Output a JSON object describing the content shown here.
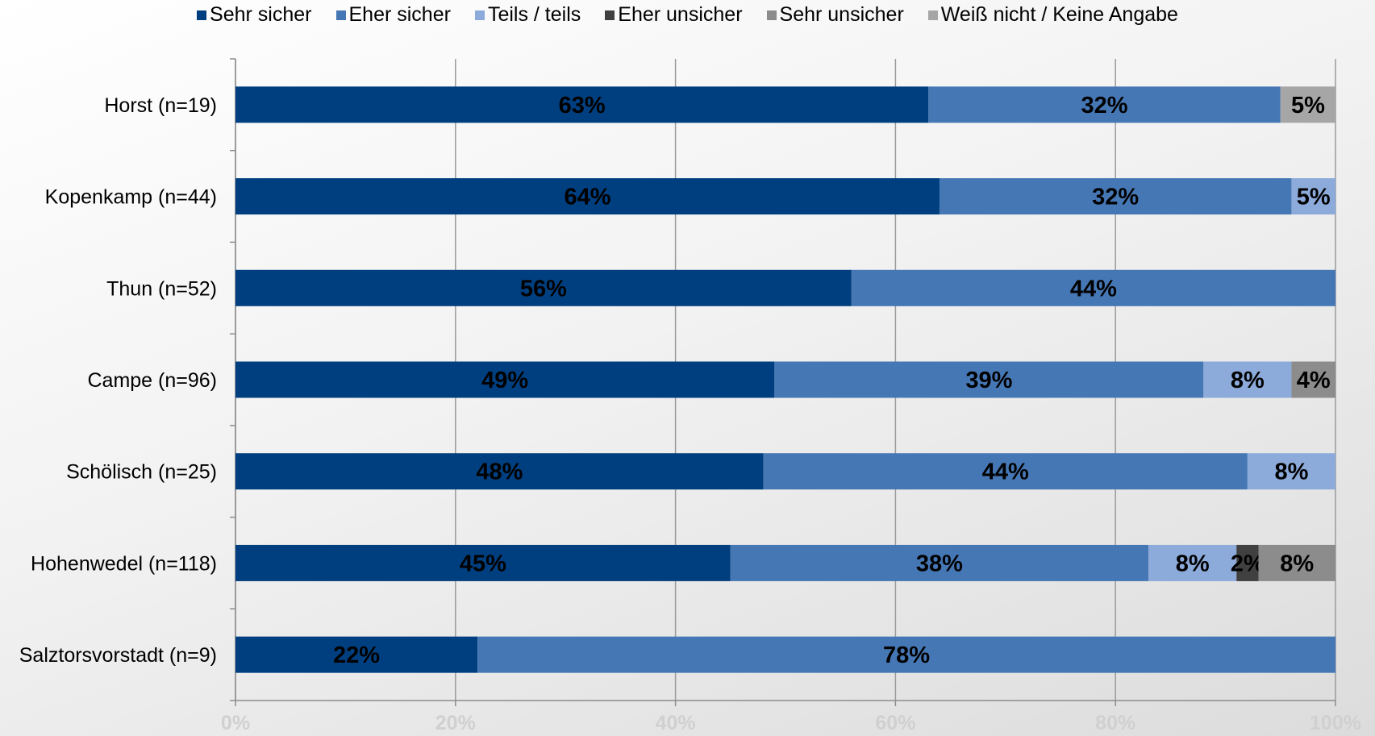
{
  "chart_data": {
    "type": "bar",
    "orientation": "horizontal",
    "stacked": true,
    "categories": [
      "Horst (n=19)",
      "Kopenkamp (n=44)",
      "Thun (n=52)",
      "Campe (n=96)",
      "Schölisch (n=25)",
      "Hohenwedel (n=118)",
      "Salztorsvorstadt (n=9)"
    ],
    "series": [
      {
        "name": "Sehr sicher",
        "color": "#003F7F",
        "values": [
          63,
          64,
          56,
          49,
          48,
          45,
          22
        ],
        "labels": [
          "63%",
          "64%",
          "56%",
          "49%",
          "48%",
          "45%",
          "22%"
        ]
      },
      {
        "name": "Eher sicher",
        "color": "#4677B5",
        "values": [
          32,
          32,
          44,
          39,
          44,
          38,
          78
        ],
        "labels": [
          "32%",
          "32%",
          "44%",
          "39%",
          "44%",
          "38%",
          "78%"
        ]
      },
      {
        "name": "Teils / teils",
        "color": "#8CAADA",
        "values": [
          0,
          5,
          0,
          8,
          8,
          8,
          0
        ],
        "labels": [
          "",
          "5%",
          "",
          "8%",
          "8%",
          "8%",
          ""
        ]
      },
      {
        "name": "Eher unsicher",
        "color": "#404040",
        "values": [
          0,
          0,
          0,
          0,
          0,
          2,
          0
        ],
        "labels": [
          "",
          "",
          "",
          "",
          "",
          "2%",
          ""
        ]
      },
      {
        "name": "Sehr unsicher",
        "color": "#8C8C8C",
        "values": [
          0,
          0,
          0,
          4,
          0,
          8,
          0
        ],
        "labels": [
          "",
          "",
          "",
          "4%",
          "",
          "8%",
          ""
        ]
      },
      {
        "name": "Weiß nicht / Keine Angabe",
        "color": "#A6A6A6",
        "values": [
          5,
          0,
          0,
          0,
          0,
          0,
          0
        ],
        "labels": [
          "5%",
          "",
          "",
          "",
          "",
          "",
          ""
        ]
      }
    ],
    "xlim": [
      0,
      100
    ],
    "xticks": [
      "0%",
      "20%",
      "40%",
      "60%",
      "80%",
      "100%"
    ],
    "grid": true,
    "legend_position": "top"
  }
}
